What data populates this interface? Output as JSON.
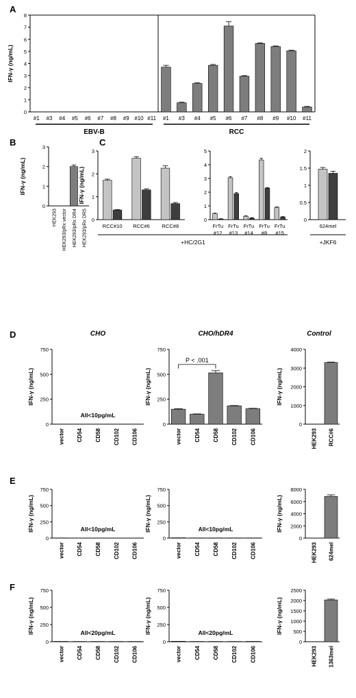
{
  "chart_data": [
    {
      "panel": "A",
      "type": "bar",
      "ylabel": "IFN-γ (ng/mL)",
      "ylim": [
        0,
        8
      ],
      "yticks": [
        0,
        1,
        2,
        3,
        4,
        5,
        6,
        7,
        8
      ],
      "groups": [
        {
          "label": "EBV-B",
          "categories": [
            "#1",
            "#3",
            "#4",
            "#5",
            "#6",
            "#7",
            "#8",
            "#9",
            "#10",
            "#11"
          ],
          "values": [
            0,
            0,
            0,
            0,
            0,
            0,
            0,
            0,
            0,
            0
          ],
          "errors": [
            0,
            0,
            0,
            0,
            0,
            0,
            0,
            0,
            0,
            0
          ]
        },
        {
          "label": "RCC",
          "categories": [
            "#1",
            "#3",
            "#4",
            "#5",
            "#6",
            "#7",
            "#8",
            "#9",
            "#10",
            "#11"
          ],
          "values": [
            3.7,
            0.75,
            2.35,
            3.85,
            7.1,
            2.95,
            5.65,
            5.4,
            5.05,
            0.4
          ],
          "errors": [
            0.15,
            0.05,
            0.05,
            0.07,
            0.35,
            0.05,
            0.05,
            0.05,
            0.05,
            0.05
          ]
        }
      ]
    },
    {
      "panel": "B",
      "type": "bar",
      "ylabel": "IFN-γ (ng/mL)",
      "ylim": [
        0,
        3
      ],
      "yticks": [
        0,
        1,
        2,
        3
      ],
      "categories": [
        "HEK293",
        "HEK293/pRx vector",
        "HEK293/pRx DR4",
        "HEK293/pRx DR5"
      ],
      "values": [
        0,
        0,
        2.0,
        0
      ],
      "errors": [
        0,
        0,
        0.08,
        0
      ]
    },
    {
      "panel": "C",
      "type": "bar",
      "ylabel": "IFN-γ (ng/mL)",
      "subpanels": [
        {
          "ylim": [
            0,
            3
          ],
          "yticks": [
            0,
            1,
            2,
            3
          ],
          "categories": [
            "RCC#10",
            "RCC#6",
            "RCC#8"
          ],
          "series": [
            {
              "values": [
                1.72,
                2.68,
                2.25
              ],
              "errors": [
                0.05,
                0.07,
                0.1
              ]
            },
            {
              "values": [
                0.42,
                1.3,
                0.7
              ],
              "errors": [
                0.02,
                0.05,
                0.05
              ]
            }
          ]
        },
        {
          "ylim": [
            0,
            5
          ],
          "yticks": [
            0,
            1,
            2,
            3,
            4,
            5
          ],
          "categories": [
            "FrTu #12",
            "FrTu #13",
            "FrTu #14",
            "FrTu #8",
            "FrTu #15"
          ],
          "series": [
            {
              "values": [
                0.45,
                3.05,
                0.25,
                4.35,
                0.9
              ],
              "errors": [
                0.03,
                0.08,
                0.03,
                0.12,
                0.03
              ]
            },
            {
              "values": [
                0.05,
                1.9,
                0.12,
                2.3,
                0.2
              ],
              "errors": [
                0.02,
                0.08,
                0.02,
                0.04,
                0.02
              ]
            }
          ]
        },
        {
          "ylim": [
            0,
            2
          ],
          "yticks": [
            0,
            0.5,
            1.0,
            1.5,
            2.0
          ],
          "categories": [
            "624mel"
          ],
          "series": [
            {
              "values": [
                1.47
              ],
              "errors": [
                0.05
              ]
            },
            {
              "values": [
                1.35
              ],
              "errors": [
                0.06
              ]
            }
          ]
        }
      ],
      "group_labels": [
        "+HC/2G1",
        "+JKF6"
      ]
    },
    {
      "panel": "D",
      "type": "bar",
      "ylabel": "IFN-γ (ng/mL)",
      "subpanels": [
        {
          "title": "CHO",
          "ylim": [
            0,
            750
          ],
          "yticks": [
            0,
            250,
            500,
            750
          ],
          "categories": [
            "vector",
            "CD54",
            "CD58",
            "CD102",
            "CD106"
          ],
          "values": [
            0,
            0,
            0,
            0,
            0
          ],
          "errors": [
            0,
            0,
            0,
            0,
            0
          ],
          "note": "All<10pg/mL"
        },
        {
          "title": "CHO/hDR4",
          "ylim": [
            0,
            750
          ],
          "yticks": [
            0,
            250,
            500,
            750
          ],
          "categories": [
            "vector",
            "CD54",
            "CD58",
            "CD102",
            "CD106"
          ],
          "values": [
            150,
            100,
            515,
            183,
            155
          ],
          "errors": [
            5,
            3,
            22,
            4,
            4
          ],
          "annotation": "P < .001"
        },
        {
          "title": "Control",
          "ylim": [
            0,
            4000
          ],
          "yticks": [
            0,
            1000,
            2000,
            3000,
            4000
          ],
          "categories": [
            "HEK293",
            "RCC#6"
          ],
          "values": [
            0,
            3300
          ],
          "errors": [
            0,
            20
          ]
        }
      ]
    },
    {
      "panel": "E",
      "type": "bar",
      "ylabel": "IFN-γ (ng/mL)",
      "subpanels": [
        {
          "ylim": [
            0,
            750
          ],
          "yticks": [
            0,
            250,
            500,
            750
          ],
          "categories": [
            "vector",
            "CD54",
            "CD58",
            "CD102",
            "CD106"
          ],
          "values": [
            3,
            2,
            2,
            2,
            2
          ],
          "errors": [
            0,
            0,
            0,
            0,
            0
          ],
          "note": "All<10pg/mL"
        },
        {
          "ylim": [
            0,
            750
          ],
          "yticks": [
            0,
            250,
            500,
            750
          ],
          "categories": [
            "vector",
            "CD54",
            "CD58",
            "CD102",
            "CD106"
          ],
          "values": [
            5,
            3,
            3,
            3,
            3
          ],
          "errors": [
            0,
            0,
            0,
            0,
            0
          ],
          "note": "All<10pg/mL"
        },
        {
          "ylim": [
            0,
            8000
          ],
          "yticks": [
            0,
            2000,
            4000,
            6000,
            8000
          ],
          "categories": [
            "HEK293",
            "624mel"
          ],
          "values": [
            0,
            6850
          ],
          "errors": [
            0,
            250
          ]
        }
      ]
    },
    {
      "panel": "F",
      "type": "bar",
      "ylabel": "IFN-γ (ng/mL)",
      "subpanels": [
        {
          "ylim": [
            0,
            750
          ],
          "yticks": [
            0,
            250,
            500,
            750
          ],
          "categories": [
            "vector",
            "CD54",
            "CD58",
            "CD102",
            "CD106"
          ],
          "values": [
            5,
            4,
            4,
            4,
            4
          ],
          "errors": [
            0,
            0,
            0,
            0,
            0
          ],
          "note": "All<20pg/mL"
        },
        {
          "ylim": [
            0,
            750
          ],
          "yticks": [
            0,
            250,
            500,
            750
          ],
          "categories": [
            "vector",
            "CD54",
            "CD58",
            "CD102",
            "CD106"
          ],
          "values": [
            7,
            4,
            4,
            4,
            5
          ],
          "errors": [
            0,
            0,
            0,
            0,
            0
          ],
          "note": "All<20pg/mL"
        },
        {
          "ylim": [
            0,
            2500
          ],
          "yticks": [
            0,
            500,
            1000,
            1500,
            2000,
            2500
          ],
          "categories": [
            "HEK293",
            "1363mel"
          ],
          "values": [
            0,
            2030
          ],
          "errors": [
            0,
            40
          ]
        }
      ]
    }
  ],
  "colors": {
    "bar_dark": "#7d7d7d",
    "bar_light": "#c4c4c4",
    "bar_darkest": "#3e3e3e"
  }
}
